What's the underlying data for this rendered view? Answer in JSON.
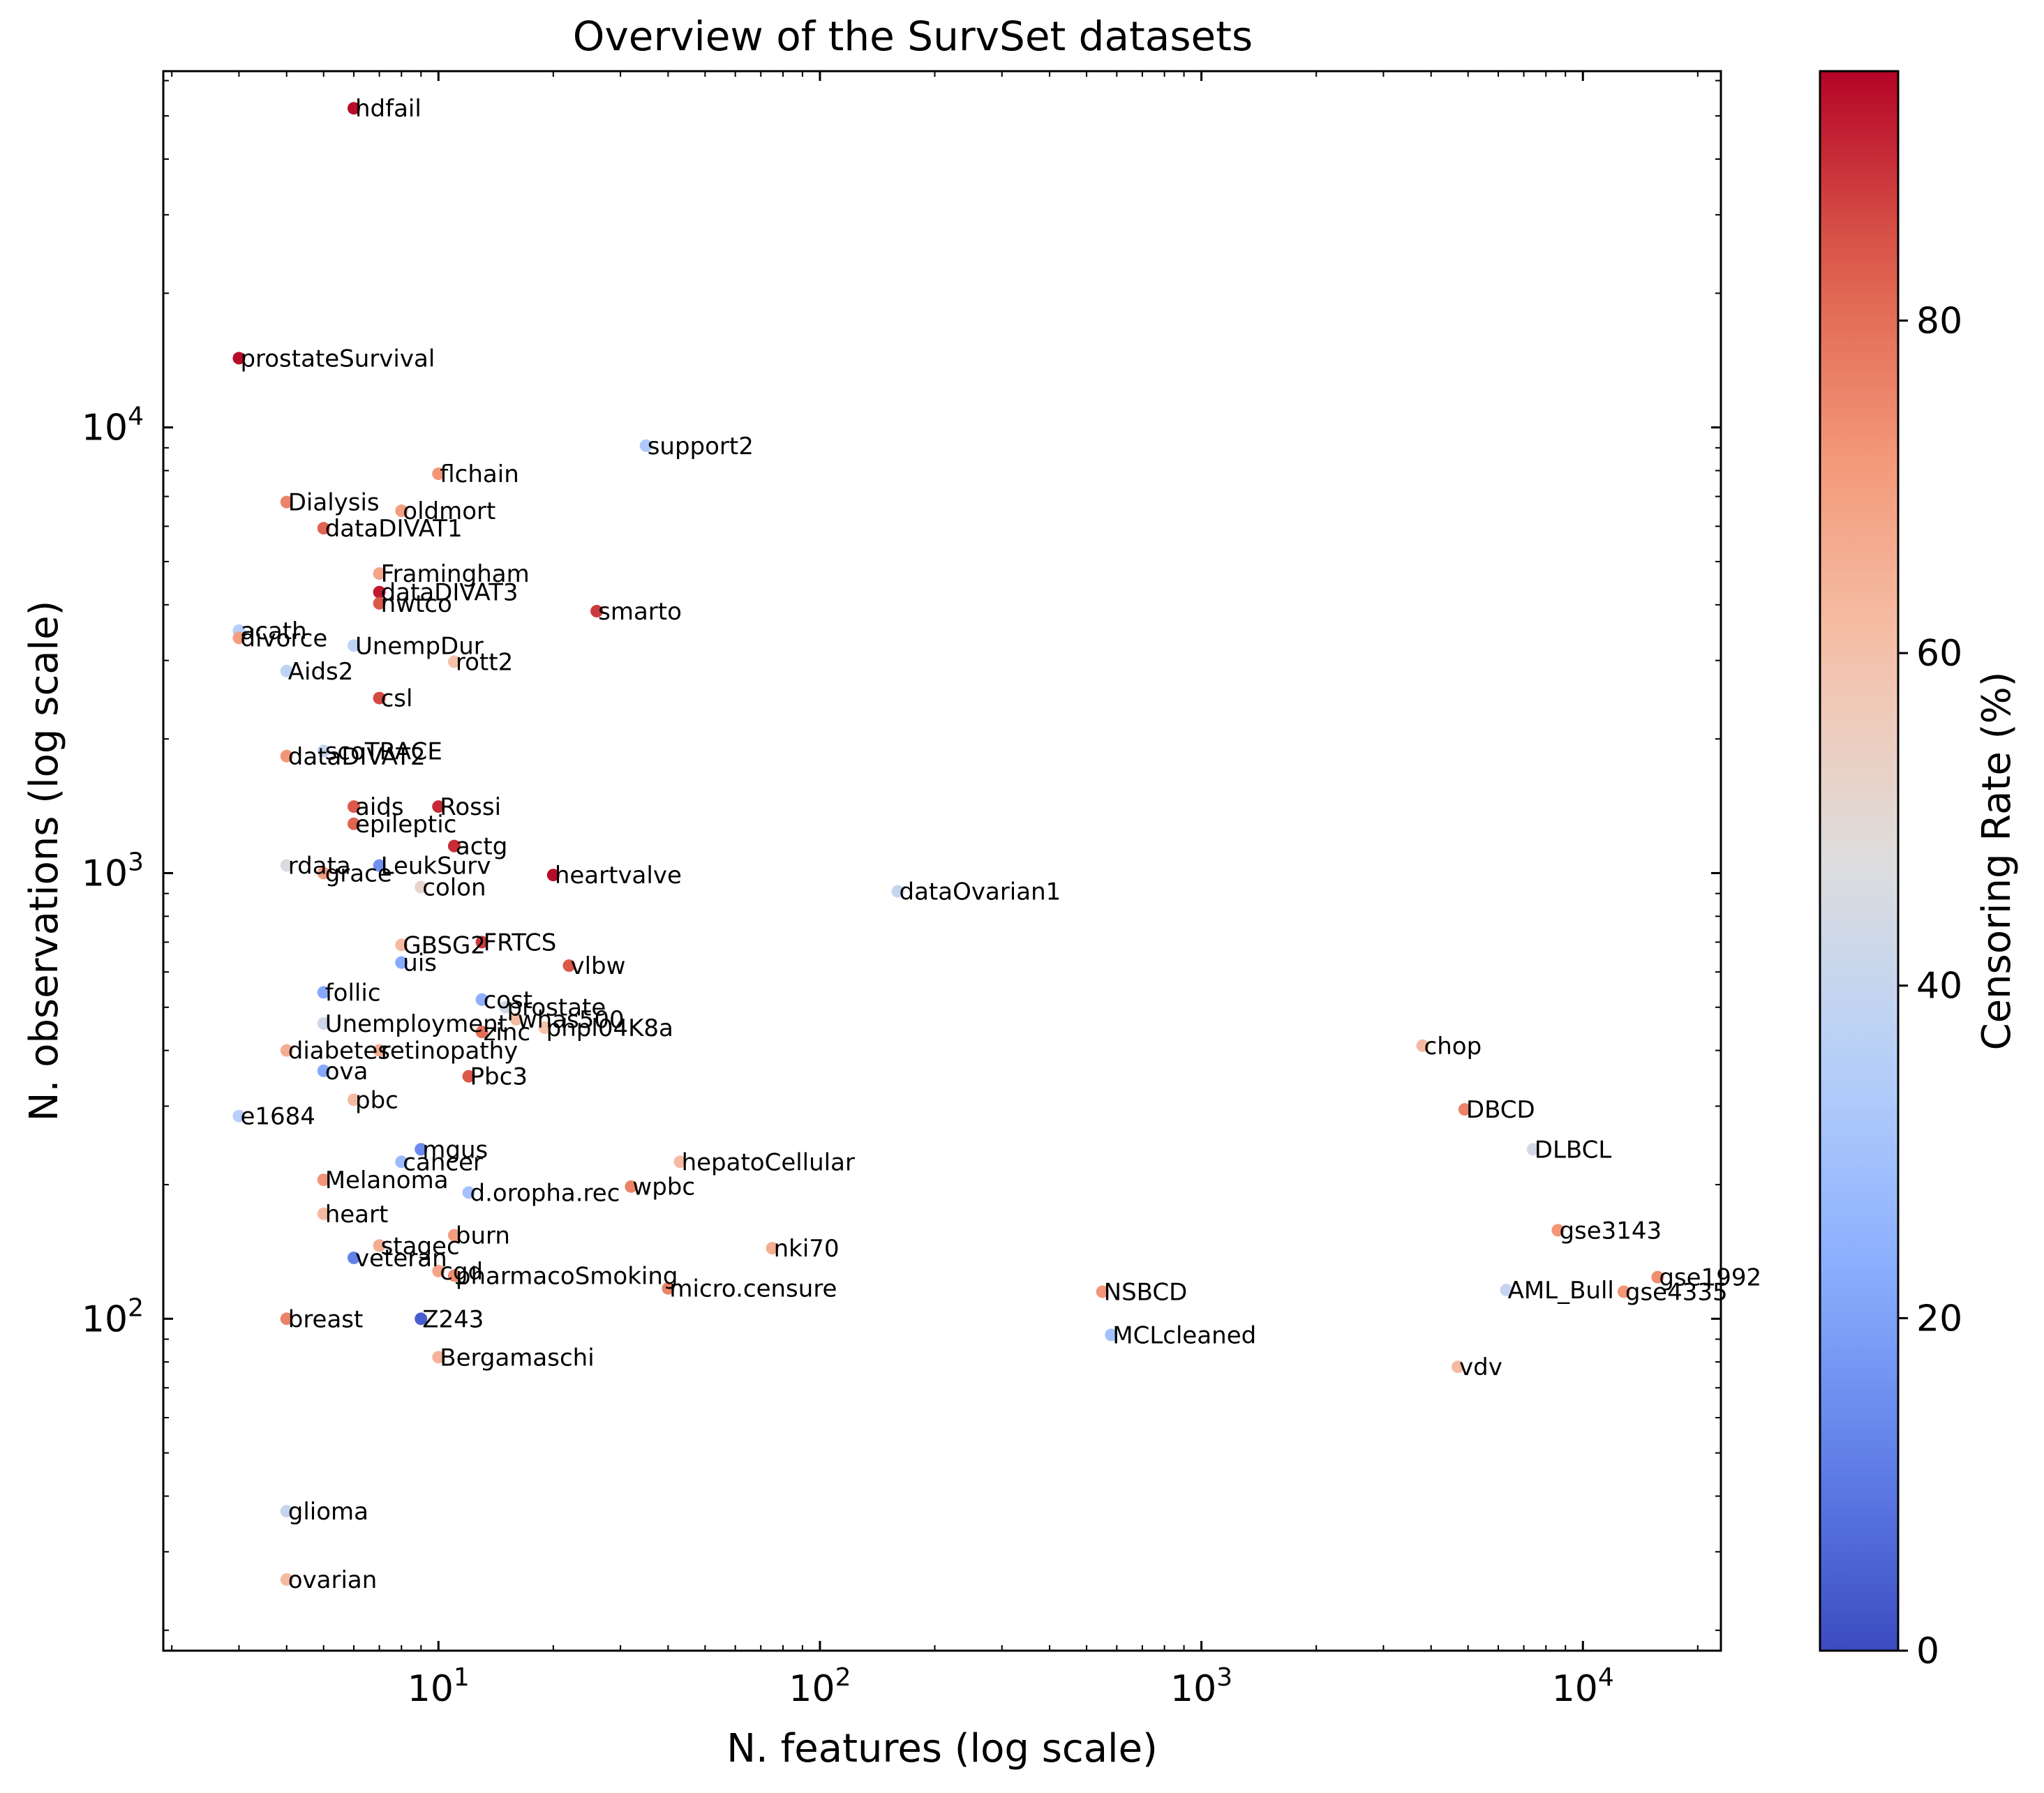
{
  "chart_data": {
    "type": "scatter",
    "title": "Overview of the SurvSet datasets",
    "xlabel": "N. features (log scale)",
    "ylabel": "N. observations (log scale)",
    "xscale": "log",
    "yscale": "log",
    "xlim": [
      1.9,
      23000
    ],
    "ylim": [
      18,
      63000
    ],
    "x_major_ticks": [
      10,
      100,
      1000,
      10000
    ],
    "x_tick_labels": [
      {
        "base": "10",
        "exp": "1"
      },
      {
        "base": "10",
        "exp": "2"
      },
      {
        "base": "10",
        "exp": "3"
      },
      {
        "base": "10",
        "exp": "4"
      }
    ],
    "y_major_ticks": [
      100,
      1000,
      10000
    ],
    "y_tick_labels": [
      {
        "base": "10",
        "exp": "2"
      },
      {
        "base": "10",
        "exp": "3"
      },
      {
        "base": "10",
        "exp": "4"
      }
    ],
    "grid": false,
    "colormap": "coolwarm",
    "color_label": "Censoring Rate (%)",
    "color_range": [
      0,
      95
    ],
    "colorbar_ticks": [
      0,
      20,
      40,
      60,
      80
    ],
    "colorbar_tick_labels": [
      "0",
      "20",
      "40",
      "60",
      "80"
    ],
    "points": [
      {
        "name": "hdfail",
        "x": 6,
        "y": 52000,
        "c": 94
      },
      {
        "name": "prostateSurvival",
        "x": 3,
        "y": 14300,
        "c": 94
      },
      {
        "name": "support2",
        "x": 35,
        "y": 9100,
        "c": 33
      },
      {
        "name": "flchain",
        "x": 10,
        "y": 7870,
        "c": 72
      },
      {
        "name": "Dialysis",
        "x": 4,
        "y": 6800,
        "c": 76
      },
      {
        "name": "oldmort",
        "x": 8,
        "y": 6500,
        "c": 70
      },
      {
        "name": "dataDIVAT1",
        "x": 5,
        "y": 5940,
        "c": 82
      },
      {
        "name": "Framingham",
        "x": 7,
        "y": 4700,
        "c": 68
      },
      {
        "name": "dataDIVAT3",
        "x": 7,
        "y": 4270,
        "c": 92
      },
      {
        "name": "nwtco",
        "x": 7,
        "y": 4030,
        "c": 84
      },
      {
        "name": "smarto",
        "x": 26,
        "y": 3870,
        "c": 88
      },
      {
        "name": "acath",
        "x": 3,
        "y": 3500,
        "c": 35
      },
      {
        "name": "divorce",
        "x": 3,
        "y": 3370,
        "c": 70
      },
      {
        "name": "UnempDur",
        "x": 6,
        "y": 3240,
        "c": 38
      },
      {
        "name": "rott2",
        "x": 11,
        "y": 2980,
        "c": 60
      },
      {
        "name": "Aids2",
        "x": 4,
        "y": 2840,
        "c": 38
      },
      {
        "name": "csl",
        "x": 7,
        "y": 2470,
        "c": 86
      },
      {
        "name": "scoTRACE",
        "x": 5,
        "y": 1880,
        "c": 40
      },
      {
        "name": "dataDIVAT2",
        "x": 4,
        "y": 1830,
        "c": 72
      },
      {
        "name": "aids",
        "x": 6,
        "y": 1410,
        "c": 84
      },
      {
        "name": "Rossi",
        "x": 10,
        "y": 1410,
        "c": 90
      },
      {
        "name": "epileptic",
        "x": 6,
        "y": 1290,
        "c": 82
      },
      {
        "name": "actg",
        "x": 11,
        "y": 1150,
        "c": 90
      },
      {
        "name": "rdata",
        "x": 4,
        "y": 1040,
        "c": 46
      },
      {
        "name": "grace",
        "x": 5,
        "y": 1000,
        "c": 70
      },
      {
        "name": "LeukSurv",
        "x": 7,
        "y": 1040,
        "c": 16
      },
      {
        "name": "colon",
        "x": 9,
        "y": 930,
        "c": 52
      },
      {
        "name": "heartvalve",
        "x": 20,
        "y": 990,
        "c": 94
      },
      {
        "name": "dataOvarian1",
        "x": 160,
        "y": 910,
        "c": 40
      },
      {
        "name": "GBSG2",
        "x": 8,
        "y": 690,
        "c": 62
      },
      {
        "name": "FRTCS",
        "x": 13,
        "y": 700,
        "c": 88
      },
      {
        "name": "uis",
        "x": 8,
        "y": 630,
        "c": 22
      },
      {
        "name": "vlbw",
        "x": 22,
        "y": 620,
        "c": 84
      },
      {
        "name": "follic",
        "x": 5,
        "y": 540,
        "c": 22
      },
      {
        "name": "cost",
        "x": 13,
        "y": 520,
        "c": 24
      },
      {
        "name": "prostate",
        "x": 15,
        "y": 500,
        "c": 44
      },
      {
        "name": "Unemployment",
        "x": 5,
        "y": 460,
        "c": 42
      },
      {
        "name": "whas500",
        "x": 16,
        "y": 470,
        "c": 62
      },
      {
        "name": "zinc",
        "x": 13,
        "y": 440,
        "c": 80
      },
      {
        "name": "phpl04K8a",
        "x": 19,
        "y": 450,
        "c": 60
      },
      {
        "name": "diabetes",
        "x": 4,
        "y": 400,
        "c": 66
      },
      {
        "name": "retinopathy",
        "x": 7,
        "y": 400,
        "c": 66
      },
      {
        "name": "ova",
        "x": 5,
        "y": 360,
        "c": 22
      },
      {
        "name": "Pbc3",
        "x": 12,
        "y": 350,
        "c": 84
      },
      {
        "name": "pbc",
        "x": 6,
        "y": 310,
        "c": 62
      },
      {
        "name": "e1684",
        "x": 3,
        "y": 285,
        "c": 36
      },
      {
        "name": "mgus",
        "x": 9,
        "y": 240,
        "c": 14
      },
      {
        "name": "cancer",
        "x": 8,
        "y": 225,
        "c": 28
      },
      {
        "name": "hepatoCellular",
        "x": 43,
        "y": 225,
        "c": 62
      },
      {
        "name": "Melanoma",
        "x": 5,
        "y": 205,
        "c": 72
      },
      {
        "name": "wpbc",
        "x": 32,
        "y": 198,
        "c": 76
      },
      {
        "name": "d.oropha.rec",
        "x": 12,
        "y": 192,
        "c": 30
      },
      {
        "name": "heart",
        "x": 5,
        "y": 172,
        "c": 62
      },
      {
        "name": "burn",
        "x": 11,
        "y": 154,
        "c": 70
      },
      {
        "name": "stagec",
        "x": 7,
        "y": 146,
        "c": 66
      },
      {
        "name": "nki70",
        "x": 75,
        "y": 144,
        "c": 66
      },
      {
        "name": "veteran",
        "x": 6,
        "y": 137,
        "c": 12
      },
      {
        "name": "cgd",
        "x": 10,
        "y": 128,
        "c": 68
      },
      {
        "name": "pharmacoSmoking",
        "x": 11,
        "y": 125,
        "c": 74
      },
      {
        "name": "micro.censure",
        "x": 40,
        "y": 117,
        "c": 76
      },
      {
        "name": "NSBCD",
        "x": 550,
        "y": 115,
        "c": 72
      },
      {
        "name": "AML_Bull",
        "x": 6300,
        "y": 116,
        "c": 40
      },
      {
        "name": "gse4335",
        "x": 12800,
        "y": 115,
        "c": 72
      },
      {
        "name": "gse1992",
        "x": 15700,
        "y": 124,
        "c": 74
      },
      {
        "name": "breast",
        "x": 4,
        "y": 100,
        "c": 76
      },
      {
        "name": "Z243",
        "x": 9,
        "y": 100,
        "c": 4
      },
      {
        "name": "MCLcleaned",
        "x": 580,
        "y": 92,
        "c": 30
      },
      {
        "name": "Bergamaschi",
        "x": 10,
        "y": 82,
        "c": 64
      },
      {
        "name": "vdv",
        "x": 4700,
        "y": 78,
        "c": 62
      },
      {
        "name": "chop",
        "x": 3800,
        "y": 410,
        "c": 62
      },
      {
        "name": "DBCD",
        "x": 4900,
        "y": 295,
        "c": 76
      },
      {
        "name": "DLBCL",
        "x": 7400,
        "y": 240,
        "c": 44
      },
      {
        "name": "gse3143",
        "x": 8600,
        "y": 158,
        "c": 72
      },
      {
        "name": "glioma",
        "x": 4,
        "y": 37,
        "c": 40
      },
      {
        "name": "ovarian",
        "x": 4,
        "y": 26,
        "c": 62
      }
    ]
  }
}
